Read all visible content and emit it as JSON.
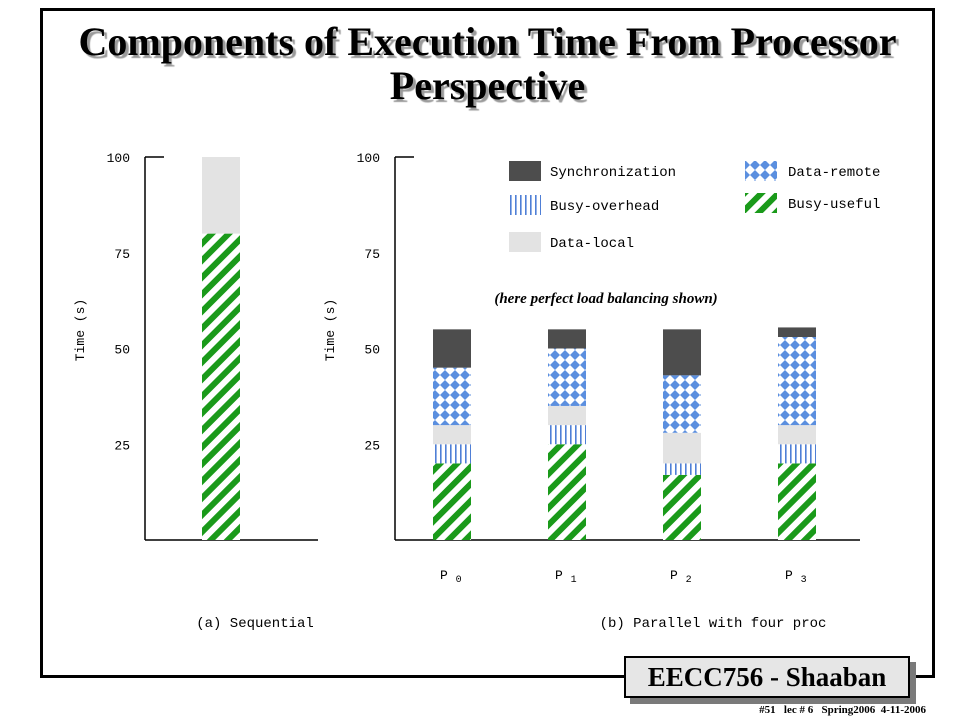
{
  "title": "Components of Execution Time From Processor Perspective",
  "badge": "EECC756 - Shaaban",
  "footer": "#51   lec # 6   Spring2006  4-11-2006",
  "note": "(here perfect load balancing shown)",
  "colors": {
    "Synchronization": "#4d4d4d",
    "Busy-overhead": "#4f7fd6",
    "Data-local": "#e3e3e3",
    "Data-remote": "#5b8fdf",
    "Busy-useful": "#1a9a1a"
  },
  "chart_data": [
    {
      "type": "bar",
      "stacked": true,
      "caption": "(a) Sequential",
      "ylabel": "Time (s)",
      "ylim": [
        0,
        100
      ],
      "yticks": [
        25,
        50,
        75,
        100
      ],
      "categories": [
        ""
      ],
      "series": [
        {
          "name": "Busy-useful",
          "values": [
            80
          ]
        },
        {
          "name": "Data-local",
          "values": [
            20
          ]
        },
        {
          "name": "Data-remote",
          "values": [
            0
          ]
        }
      ]
    },
    {
      "type": "bar",
      "stacked": true,
      "caption": "(b) Parallel with four proc",
      "ylabel": "Time (s)",
      "ylim": [
        0,
        100
      ],
      "yticks": [
        25,
        50,
        75,
        100
      ],
      "categories": [
        "P 0",
        "P 1",
        "P 2",
        "P 3"
      ],
      "legend": [
        "Synchronization",
        "Busy-overhead",
        "Data-local",
        "Data-remote",
        "Busy-useful"
      ],
      "series": [
        {
          "name": "Busy-useful",
          "values": [
            20,
            25,
            17,
            20
          ]
        },
        {
          "name": "Busy-overhead",
          "values": [
            5,
            5,
            3,
            5
          ]
        },
        {
          "name": "Data-local",
          "values": [
            5,
            5,
            8,
            5
          ]
        },
        {
          "name": "Data-remote",
          "values": [
            15,
            15,
            15,
            23
          ]
        },
        {
          "name": "Synchronization",
          "values": [
            10,
            5,
            12,
            2.5
          ]
        }
      ]
    }
  ]
}
